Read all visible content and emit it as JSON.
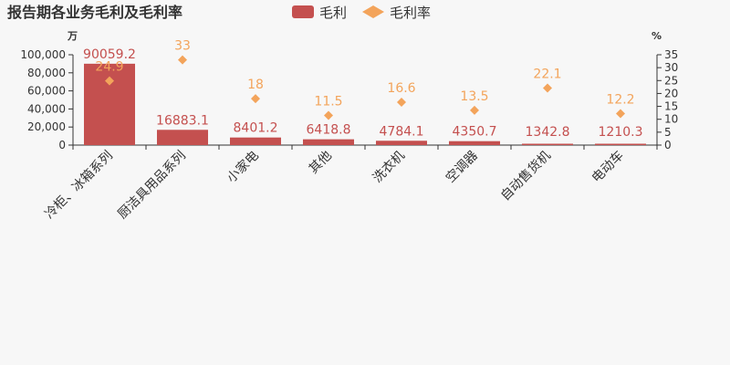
{
  "colors": {
    "bar": "#c4504f",
    "rate": "#f3a45b",
    "axis": "#333333",
    "background": "#f7f7f7"
  },
  "chart_data": {
    "type": "bar",
    "title": "报告期各业务毛利及毛利率",
    "categories": [
      "冷柜、冰箱系列",
      "厨洁具用品系列",
      "小家电",
      "其他",
      "洗衣机",
      "空调器",
      "自动售货机",
      "电动车"
    ],
    "series": [
      {
        "name": "毛利",
        "type": "bar",
        "axis": "left",
        "values": [
          90059.2,
          16883.1,
          8401.2,
          6418.8,
          4784.1,
          4350.7,
          1342.8,
          1210.3
        ]
      },
      {
        "name": "毛利率",
        "type": "scatter",
        "axis": "right",
        "values": [
          24.9,
          33,
          18,
          11.5,
          16.6,
          13.5,
          22.1,
          12.2
        ]
      }
    ],
    "y_left": {
      "unit": "万",
      "range": [
        0,
        100000
      ],
      "ticks": [
        0,
        20000,
        40000,
        60000,
        80000,
        100000
      ],
      "tick_labels": [
        "0",
        "20,000",
        "40,000",
        "60,000",
        "80,000",
        "100,000"
      ]
    },
    "y_right": {
      "unit": "%",
      "range": [
        0,
        35
      ],
      "ticks": [
        0,
        5,
        10,
        15,
        20,
        25,
        30,
        35
      ],
      "tick_labels": [
        "0",
        "5",
        "10",
        "15",
        "20",
        "25",
        "30",
        "35"
      ]
    },
    "legend": {
      "position": "top-center",
      "items": [
        "毛利",
        "毛利率"
      ]
    },
    "grid": false
  }
}
